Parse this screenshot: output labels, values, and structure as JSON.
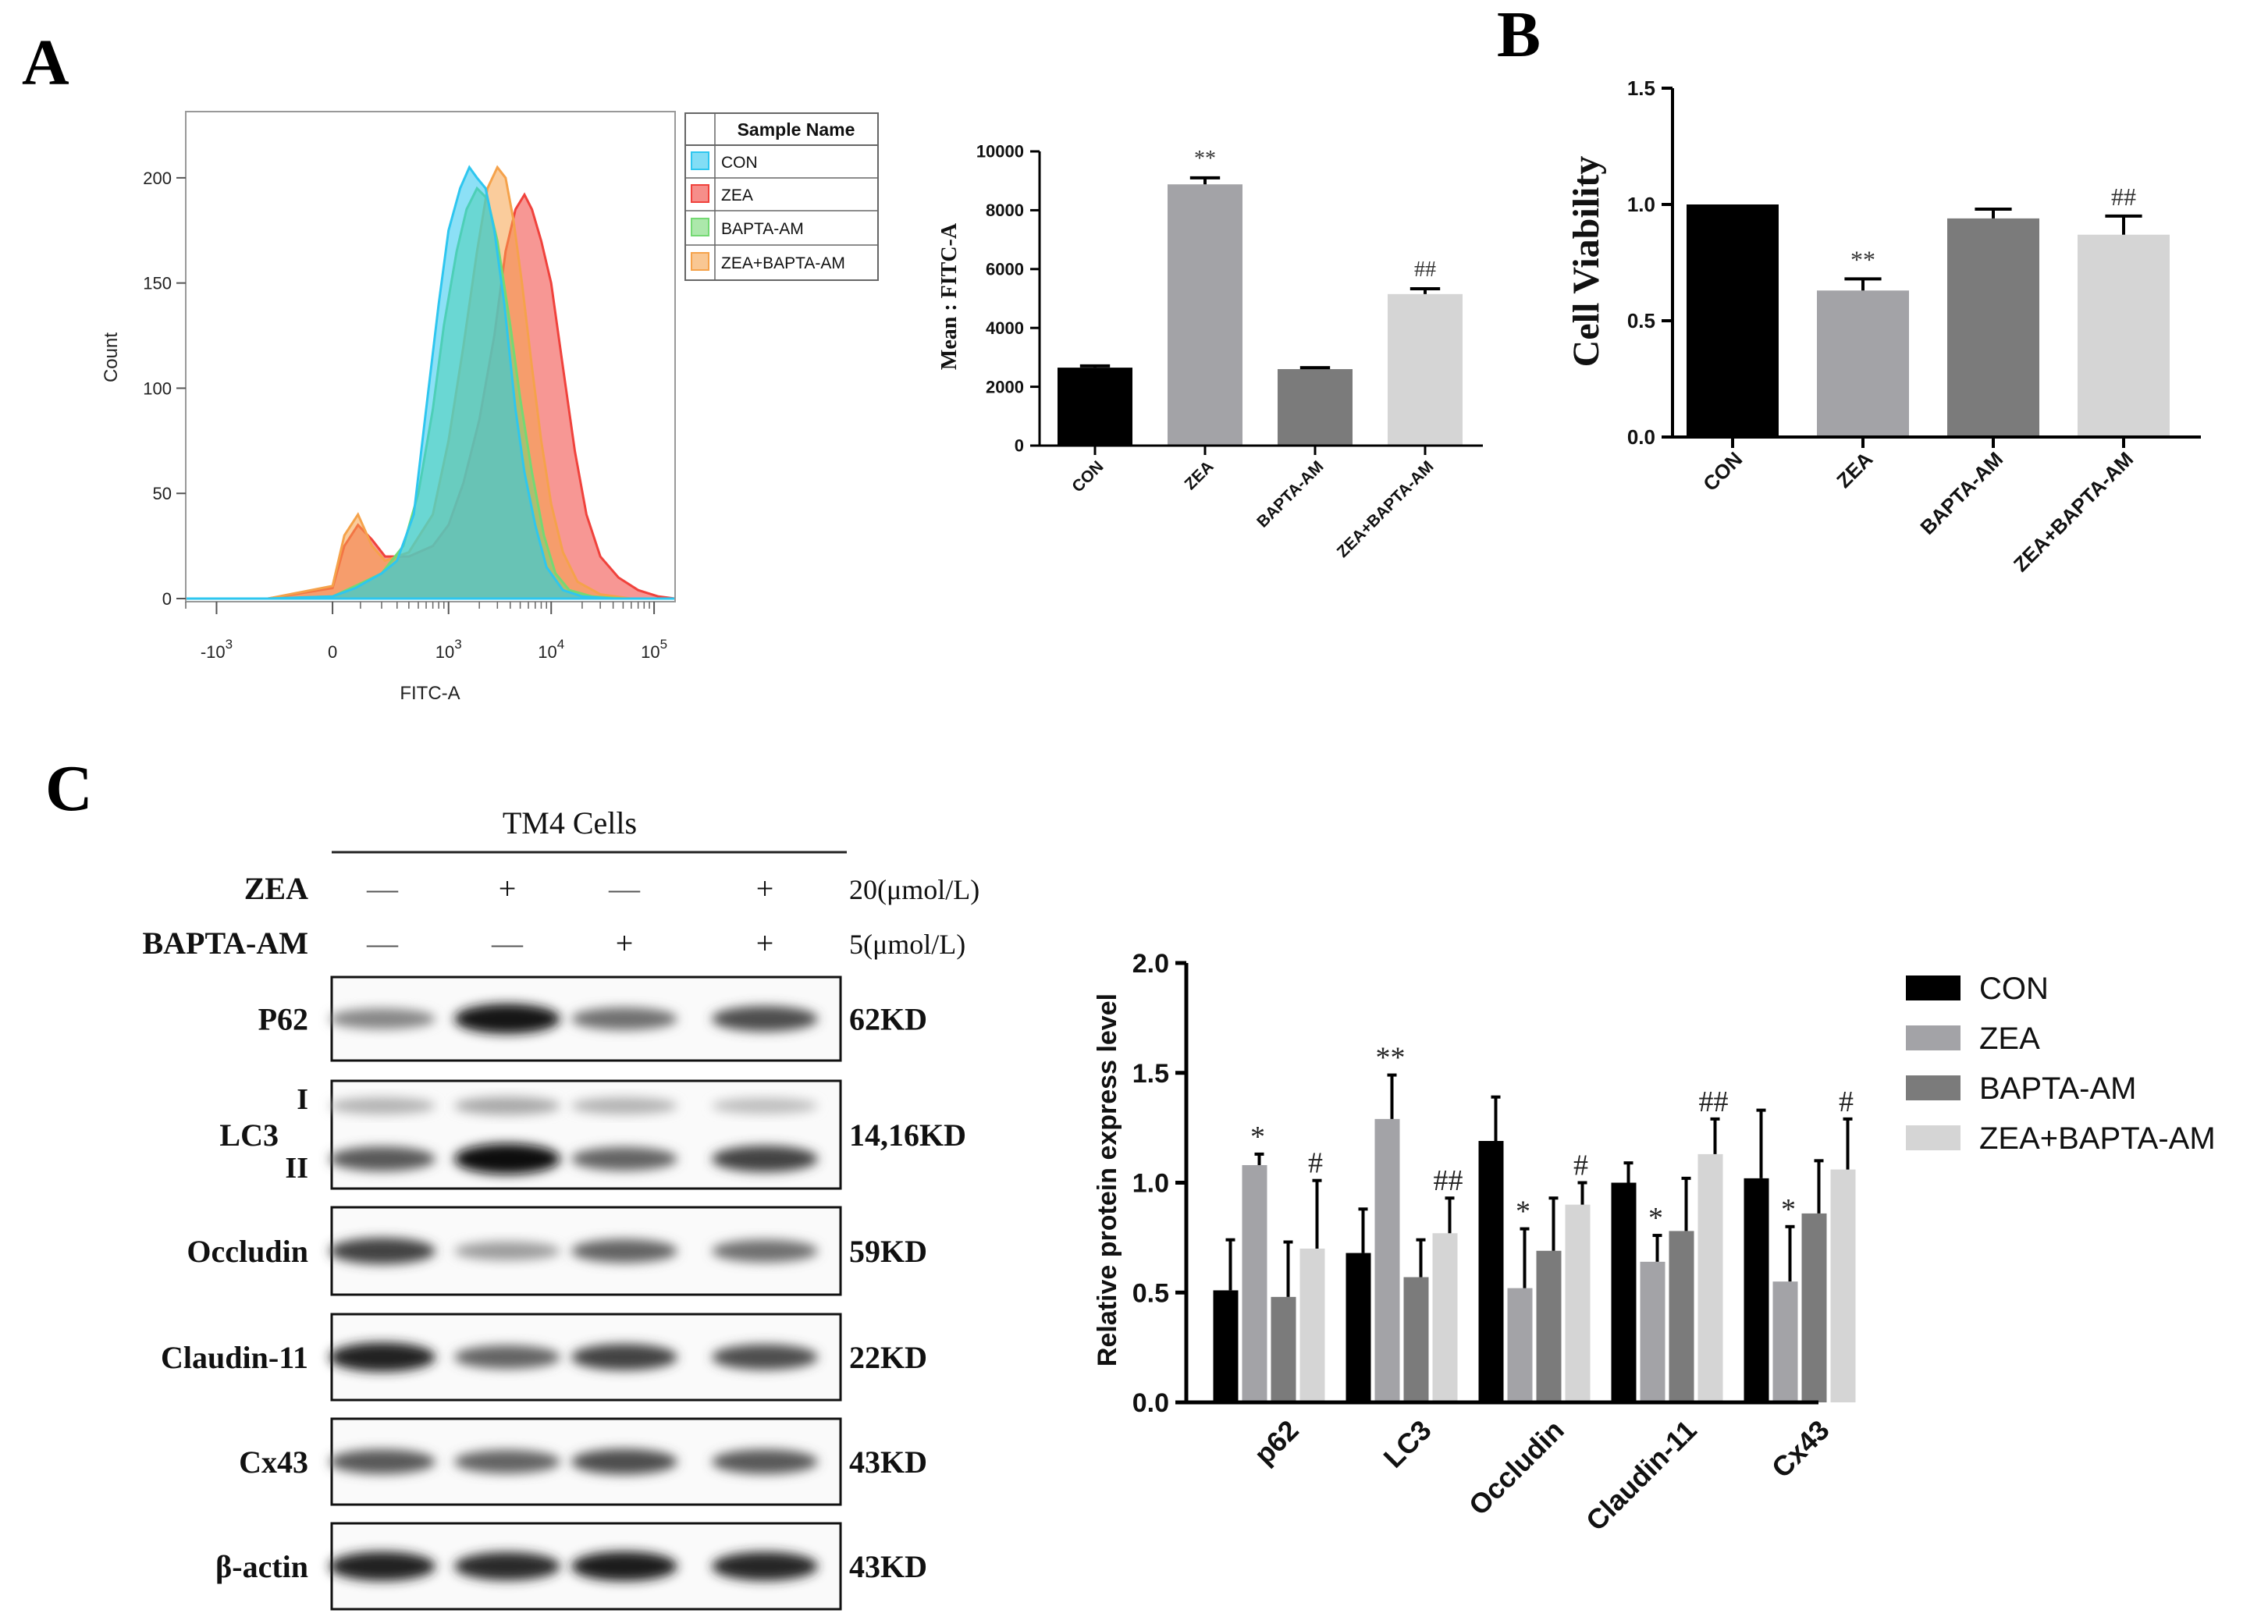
{
  "panels": {
    "a": "A",
    "b": "B",
    "c": "C"
  },
  "colors": {
    "CON": "#000000",
    "ZEA": "#a3a3a7",
    "BAPTA-AM": "#7b7b7b",
    "ZEA+BAPTA-AM": "#d5d5d5",
    "hist_CON": "#2ec6ef",
    "hist_ZEA": "#f0423c",
    "hist_BAPTA": "#74d973",
    "hist_ZEABAPTA": "#f5a24b"
  },
  "chart_data": [
    {
      "id": "histogram",
      "type": "area",
      "title": "",
      "xlabel": "FITC-A",
      "ylabel": "Count",
      "x_scale": "biexponential",
      "x_ticks": [
        {
          "value": -1000,
          "base": "-10",
          "exp": "3"
        },
        {
          "value": 0,
          "base": "0",
          "exp": ""
        },
        {
          "value": 1000,
          "base": "10",
          "exp": "3"
        },
        {
          "value": 10000,
          "base": "10",
          "exp": "4"
        },
        {
          "value": 100000,
          "base": "10",
          "exp": "5"
        }
      ],
      "y_ticks": [
        "0",
        "50",
        "100",
        "150",
        "200"
      ],
      "ylim": [
        0,
        230
      ],
      "legend": {
        "header": "Sample Name",
        "position": "top-right"
      },
      "series": [
        {
          "name": "CON",
          "color_key": "hist_CON",
          "points": [
            [
              -2000,
              0
            ],
            [
              -300,
              0
            ],
            [
              0,
              1
            ],
            [
              80,
              5
            ],
            [
              200,
              12
            ],
            [
              300,
              18
            ],
            [
              450,
              40
            ],
            [
              600,
              90
            ],
            [
              800,
              140
            ],
            [
              1000,
              175
            ],
            [
              1300,
              195
            ],
            [
              1600,
              205
            ],
            [
              1900,
              200
            ],
            [
              2300,
              195
            ],
            [
              2800,
              175
            ],
            [
              3500,
              140
            ],
            [
              4500,
              90
            ],
            [
              5500,
              60
            ],
            [
              7000,
              35
            ],
            [
              9000,
              15
            ],
            [
              13000,
              4
            ],
            [
              20000,
              1
            ],
            [
              40000,
              0
            ],
            [
              160000,
              0
            ]
          ]
        },
        {
          "name": "ZEA",
          "color_key": "hist_ZEA",
          "points": [
            [
              -2000,
              0
            ],
            [
              -300,
              0
            ],
            [
              0,
              5
            ],
            [
              40,
              25
            ],
            [
              90,
              35
            ],
            [
              150,
              28
            ],
            [
              220,
              20
            ],
            [
              400,
              20
            ],
            [
              700,
              25
            ],
            [
              1000,
              35
            ],
            [
              1400,
              55
            ],
            [
              2000,
              85
            ],
            [
              2800,
              125
            ],
            [
              3600,
              165
            ],
            [
              4500,
              185
            ],
            [
              5500,
              192
            ],
            [
              6500,
              185
            ],
            [
              8000,
              170
            ],
            [
              10000,
              150
            ],
            [
              13000,
              110
            ],
            [
              17000,
              70
            ],
            [
              22000,
              40
            ],
            [
              30000,
              20
            ],
            [
              45000,
              10
            ],
            [
              70000,
              4
            ],
            [
              110000,
              1
            ],
            [
              160000,
              0
            ]
          ]
        },
        {
          "name": "BAPTA-AM",
          "color_key": "hist_BAPTA",
          "points": [
            [
              -2000,
              0
            ],
            [
              -300,
              0
            ],
            [
              0,
              1
            ],
            [
              80,
              6
            ],
            [
              200,
              12
            ],
            [
              350,
              25
            ],
            [
              500,
              50
            ],
            [
              700,
              90
            ],
            [
              900,
              130
            ],
            [
              1200,
              165
            ],
            [
              1500,
              185
            ],
            [
              1900,
              195
            ],
            [
              2400,
              190
            ],
            [
              3000,
              170
            ],
            [
              4000,
              130
            ],
            [
              5000,
              95
            ],
            [
              6500,
              60
            ],
            [
              8500,
              30
            ],
            [
              11000,
              12
            ],
            [
              15000,
              4
            ],
            [
              25000,
              1
            ],
            [
              50000,
              0
            ],
            [
              160000,
              0
            ]
          ]
        },
        {
          "name": "ZEA+BAPTA-AM",
          "color_key": "hist_ZEABAPTA",
          "points": [
            [
              -2000,
              0
            ],
            [
              -300,
              0
            ],
            [
              0,
              6
            ],
            [
              40,
              30
            ],
            [
              90,
              40
            ],
            [
              150,
              25
            ],
            [
              220,
              18
            ],
            [
              400,
              22
            ],
            [
              700,
              40
            ],
            [
              1000,
              75
            ],
            [
              1400,
              120
            ],
            [
              1900,
              165
            ],
            [
              2400,
              195
            ],
            [
              3000,
              205
            ],
            [
              3600,
              200
            ],
            [
              4300,
              180
            ],
            [
              5200,
              150
            ],
            [
              6500,
              110
            ],
            [
              8000,
              75
            ],
            [
              10000,
              45
            ],
            [
              13000,
              22
            ],
            [
              18000,
              8
            ],
            [
              30000,
              2
            ],
            [
              60000,
              0
            ],
            [
              160000,
              0
            ]
          ]
        }
      ]
    },
    {
      "id": "mean_fitc",
      "type": "bar",
      "title": "",
      "xlabel": "",
      "ylabel": "Mean : FITC-A",
      "categories": [
        "CON",
        "ZEA",
        "BAPTA-AM",
        "ZEA+BAPTA-AM"
      ],
      "values": [
        2650,
        8880,
        2600,
        5150
      ],
      "errors": [
        60,
        220,
        50,
        180
      ],
      "annotations": [
        "",
        "**",
        "",
        "##"
      ],
      "ylim": [
        0,
        10000
      ],
      "y_ticks": [
        0,
        2000,
        4000,
        6000,
        8000,
        10000
      ]
    },
    {
      "id": "cell_viability",
      "type": "bar",
      "title": "",
      "xlabel": "",
      "ylabel": "Cell Viability",
      "categories": [
        "CON",
        "ZEA",
        "BAPTA-AM",
        "ZEA+BAPTA-AM"
      ],
      "values": [
        1.0,
        0.63,
        0.94,
        0.87
      ],
      "errors": [
        0,
        0.05,
        0.04,
        0.08
      ],
      "annotations": [
        "",
        "**",
        "",
        "##"
      ],
      "ylim": [
        0,
        1.5
      ],
      "y_ticks": [
        "0.0",
        "0.5",
        "1.0",
        "1.5"
      ]
    },
    {
      "id": "protein_expression",
      "type": "bar",
      "title": "",
      "xlabel": "",
      "ylabel": "Relative protein express level",
      "categories": [
        "p62",
        "LC3",
        "Occludin",
        "Claudin-11",
        "Cx43"
      ],
      "series": [
        {
          "name": "CON",
          "values": [
            0.51,
            0.68,
            1.19,
            1.0,
            1.02
          ],
          "errors": [
            0.23,
            0.2,
            0.2,
            0.09,
            0.31
          ],
          "annotations": [
            "",
            "",
            "",
            "",
            ""
          ]
        },
        {
          "name": "ZEA",
          "values": [
            1.08,
            1.29,
            0.52,
            0.64,
            0.55
          ],
          "errors": [
            0.05,
            0.2,
            0.27,
            0.12,
            0.25
          ],
          "annotations": [
            "*",
            "**",
            "*",
            "*",
            "*"
          ]
        },
        {
          "name": "BAPTA-AM",
          "values": [
            0.48,
            0.57,
            0.69,
            0.78,
            0.86
          ],
          "errors": [
            0.25,
            0.17,
            0.24,
            0.24,
            0.24
          ],
          "annotations": [
            "",
            "",
            "",
            "",
            ""
          ]
        },
        {
          "name": "ZEA+BAPTA-AM",
          "values": [
            0.7,
            0.77,
            0.9,
            1.13,
            1.06
          ],
          "errors": [
            0.31,
            0.16,
            0.1,
            0.16,
            0.23
          ],
          "annotations": [
            "#",
            "##",
            "#",
            "##",
            "#"
          ]
        }
      ],
      "ylim": [
        0,
        2.0
      ],
      "y_ticks": [
        "0.0",
        "0.5",
        "1.0",
        "1.5",
        "2.0"
      ],
      "legend_position": "right"
    }
  ],
  "blot": {
    "header": "TM4  Cells",
    "treatments": [
      {
        "label": "ZEA",
        "marks": [
          "—",
          "+",
          "—",
          "+"
        ],
        "dose": "20(μmol/L)"
      },
      {
        "label": "BAPTA-AM",
        "marks": [
          "—",
          "—",
          "+",
          "+"
        ],
        "dose": "5(μmol/L)"
      }
    ],
    "rows": [
      {
        "name": "P62",
        "kd": "62KD",
        "intensity": [
          [
            0.45,
            0.95,
            0.55,
            0.7
          ]
        ]
      },
      {
        "name": "LC3",
        "kd": "14,16KD",
        "sub_labels": [
          "I",
          "II"
        ],
        "intensity": [
          [
            0.25,
            0.3,
            0.25,
            0.2
          ],
          [
            0.65,
            0.98,
            0.6,
            0.75
          ]
        ]
      },
      {
        "name": "Occludin",
        "kd": "59KD",
        "intensity": [
          [
            0.75,
            0.35,
            0.6,
            0.55
          ]
        ]
      },
      {
        "name": "Claudin-11",
        "kd": "22KD",
        "intensity": [
          [
            0.9,
            0.6,
            0.75,
            0.7
          ]
        ]
      },
      {
        "name": "Cx43",
        "kd": "43KD",
        "intensity": [
          [
            0.65,
            0.6,
            0.7,
            0.65
          ]
        ]
      },
      {
        "name": "β-actin",
        "kd": "43KD",
        "intensity": [
          [
            0.9,
            0.85,
            0.92,
            0.88
          ]
        ]
      }
    ]
  }
}
